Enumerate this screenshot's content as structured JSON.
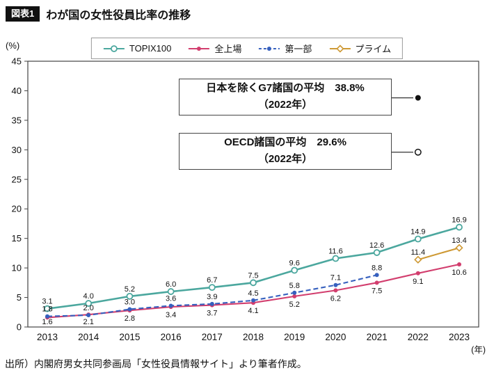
{
  "header": {
    "tag": "図表1",
    "title": "わが国の女性役員比率の推移"
  },
  "axes": {
    "y_unit": "(%)",
    "x_unit": "(年)",
    "y_ticks": [
      45,
      40,
      35,
      30,
      25,
      20,
      15,
      10,
      5,
      0
    ]
  },
  "annotations": {
    "g7": {
      "line1": "日本を除くG7諸国の平均　38.8%",
      "line2": "（2022年）"
    },
    "oecd": {
      "line1": "OECD諸国の平均　29.6%",
      "line2": "（2022年）"
    }
  },
  "chart_data": {
    "type": "line",
    "title": "わが国の女性役員比率の推移",
    "ylabel": "(%)",
    "xlabel": "(年)",
    "ylim": [
      0,
      45
    ],
    "y_tick_step": 5,
    "grid": false,
    "legend_position": "top",
    "x": [
      2013,
      2014,
      2015,
      2016,
      2017,
      2018,
      2019,
      2020,
      2021,
      2022,
      2023
    ],
    "series": [
      {
        "name": "TOPIX100",
        "color": "#4BA79E",
        "line": "solid",
        "marker": "open-circle",
        "start_index": 0,
        "label_position": "above",
        "values": [
          3.1,
          4.0,
          5.2,
          6.0,
          6.7,
          7.5,
          9.6,
          11.6,
          12.6,
          14.9,
          16.9
        ]
      },
      {
        "name": "全上場",
        "color": "#D23E6E",
        "line": "solid",
        "marker": "filled-circle",
        "start_index": 0,
        "label_position": "below",
        "values": [
          1.6,
          2.1,
          2.8,
          3.4,
          3.7,
          4.1,
          5.2,
          6.2,
          7.5,
          9.1,
          10.6
        ]
      },
      {
        "name": "第一部",
        "color": "#3660BE",
        "line": "dashed",
        "marker": "filled-circle",
        "start_index": 0,
        "label_position": "above",
        "values": [
          1.8,
          2.0,
          3.0,
          3.6,
          3.9,
          4.5,
          5.8,
          7.1,
          8.8
        ]
      },
      {
        "name": "プライム",
        "color": "#CE9934",
        "line": "solid",
        "marker": "open-diamond",
        "start_index": 9,
        "label_position": "above",
        "values": [
          11.4,
          13.4
        ]
      }
    ],
    "reference_points": [
      {
        "name": "日本を除くG7諸国の平均",
        "value": 38.8,
        "year": "2022年",
        "marker": "filled-circle"
      },
      {
        "name": "OECD諸国の平均",
        "value": 29.6,
        "year": "2022年",
        "marker": "open-circle"
      }
    ]
  },
  "source": {
    "text": "出所）内閣府男女共同参画局「女性役員情報サイト」より筆者作成。"
  }
}
